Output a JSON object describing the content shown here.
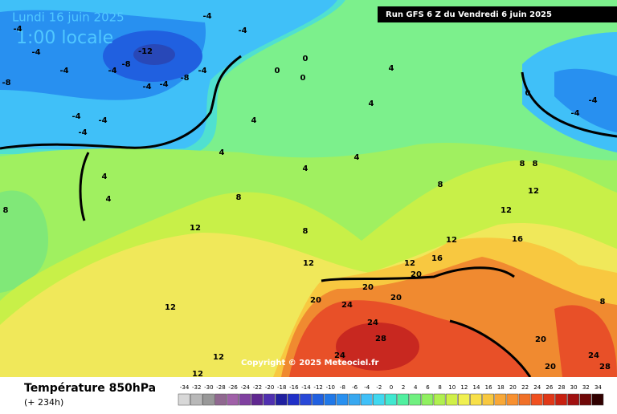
{
  "header": {
    "date": "Lundi 16 juin 2025",
    "time": "1:00 locale",
    "run": "Run GFS 6 Z du Vendredi 6 juin 2025"
  },
  "map": {
    "contour_labels": [
      "-4",
      "-4",
      "-4",
      "-4",
      "-8",
      "-12",
      "-4",
      "-4",
      "-8",
      "-4",
      "-8",
      "-4",
      "-4",
      "-4",
      "-4",
      "-4",
      "0",
      "0",
      "0",
      "4",
      "4",
      "4",
      "0",
      "-4",
      "-4",
      "4",
      "4",
      "4",
      "4",
      "4",
      "8",
      "8",
      "8",
      "8",
      "8",
      "8",
      "12",
      "12",
      "12",
      "12",
      "12",
      "12",
      "16",
      "16",
      "20",
      "20",
      "20",
      "20",
      "24",
      "24",
      "28",
      "24",
      "12",
      "12",
      "12",
      "20",
      "20",
      "24",
      "28",
      "8"
    ]
  },
  "copyright": "Copyright © 2025 Meteociel.fr",
  "footer": {
    "title": "Température 850hPa",
    "lead": "(+ 234h)"
  },
  "legend": {
    "ticks": [
      -34,
      -32,
      -30,
      -28,
      -26,
      -24,
      -22,
      -20,
      -18,
      -16,
      -14,
      -12,
      -10,
      -8,
      -6,
      -4,
      -2,
      0,
      2,
      4,
      6,
      8,
      10,
      12,
      14,
      16,
      18,
      20,
      22,
      24,
      26,
      28,
      30,
      32,
      34
    ],
    "colors": [
      "#d8d8d8",
      "#b8b8b8",
      "#989898",
      "#906890",
      "#a060a8",
      "#8040a0",
      "#602890",
      "#5030b0",
      "#2020a0",
      "#2030c8",
      "#2848d8",
      "#2060e0",
      "#2078e8",
      "#2890f0",
      "#38a8f0",
      "#40c0f8",
      "#40d8f0",
      "#40e8d0",
      "#50f0a0",
      "#70f080",
      "#90f060",
      "#b0f050",
      "#d0f048",
      "#f0f050",
      "#f8e048",
      "#f8c840",
      "#f8a838",
      "#f89030",
      "#f07028",
      "#f05020",
      "#e03818",
      "#c82010",
      "#a01010",
      "#700808",
      "#300000"
    ]
  }
}
